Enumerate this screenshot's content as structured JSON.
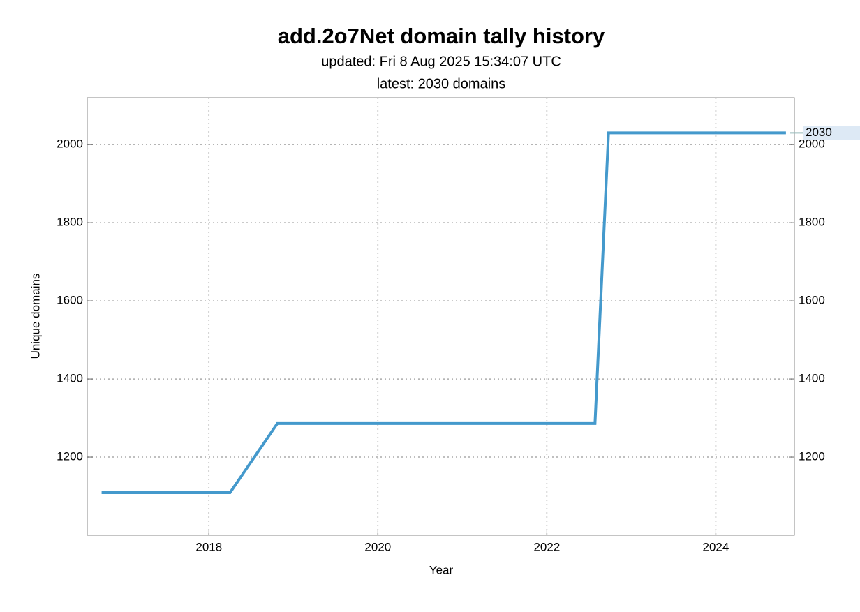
{
  "chart_data": {
    "type": "line",
    "title": "add.2o7Net domain tally history",
    "subtitle": "updated: Fri 8 Aug 2025 15:34:07 UTC",
    "subtitle2": "latest: 2030 domains",
    "x_label": "Year",
    "y_label": "Unique domains",
    "x": [
      2016.73,
      2018.25,
      2018.81,
      2022.57,
      2022.73,
      2024.83
    ],
    "series": [
      {
        "color": "#4499cc",
        "values": [
          1109,
          1109,
          1286,
          1286,
          2030,
          2030
        ]
      }
    ],
    "xlim": [
      2016.56,
      2024.93
    ],
    "xticks": [
      2018,
      2020,
      2022,
      2024
    ],
    "ylim": [
      1000,
      2120
    ],
    "yticks": [
      1200,
      1400,
      1600,
      1800,
      2000
    ],
    "grid": true,
    "right_axis": true
  }
}
